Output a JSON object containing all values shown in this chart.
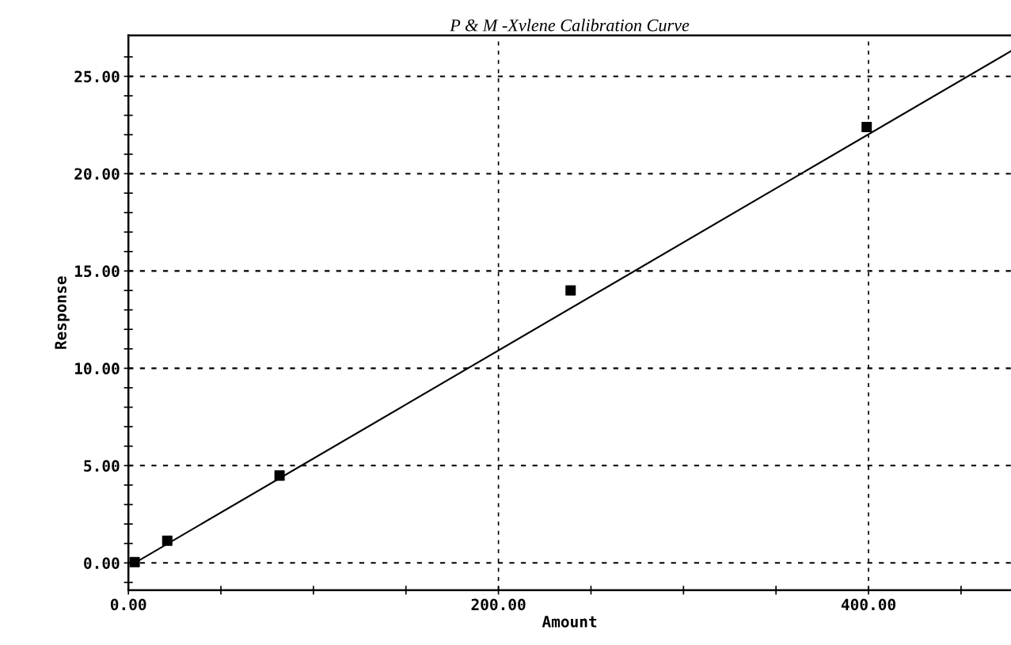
{
  "chart_data": {
    "type": "scatter",
    "title": "P & M -Xvlene Calibration Curve",
    "xlabel": "Amount",
    "ylabel": "Response",
    "series": [
      {
        "color": "#000000",
        "marker": "square",
        "x": [
          3.4,
          21,
          81.7,
          239,
          399
        ],
        "values": [
          0.04,
          1.14,
          4.49,
          14.0,
          22.4
        ]
      },
      {
        "type": "line",
        "color": "#000000",
        "marker": "none",
        "line_style": "solid",
        "x": [
          3.4,
          477
        ],
        "values": [
          0.0,
          26.3
        ]
      }
    ],
    "xlim": [
      0,
      477
    ],
    "ylim": [
      -1.4,
      27.1
    ],
    "xticks": [
      {
        "value": 0,
        "label": "0.00"
      },
      {
        "value": 50,
        "label": null
      },
      {
        "value": 100,
        "label": null
      },
      {
        "value": 150,
        "label": null
      },
      {
        "value": 200,
        "label": "200.00"
      },
      {
        "value": 250,
        "label": null
      },
      {
        "value": 300,
        "label": null
      },
      {
        "value": 350,
        "label": null
      },
      {
        "value": 400,
        "label": "400.00"
      },
      {
        "value": 450,
        "label": null
      }
    ],
    "yticks": [
      {
        "value": -1,
        "label": null
      },
      {
        "value": 0,
        "label": "0.00"
      },
      {
        "value": 1,
        "label": null
      },
      {
        "value": 2,
        "label": null
      },
      {
        "value": 3,
        "label": null
      },
      {
        "value": 4,
        "label": null
      },
      {
        "value": 5,
        "label": "5.00"
      },
      {
        "value": 6,
        "label": null
      },
      {
        "value": 7,
        "label": null
      },
      {
        "value": 8,
        "label": null
      },
      {
        "value": 9,
        "label": null
      },
      {
        "value": 10,
        "label": "10.00"
      },
      {
        "value": 11,
        "label": null
      },
      {
        "value": 12,
        "label": null
      },
      {
        "value": 13,
        "label": null
      },
      {
        "value": 14,
        "label": null
      },
      {
        "value": 15,
        "label": "15.00"
      },
      {
        "value": 16,
        "label": null
      },
      {
        "value": 17,
        "label": null
      },
      {
        "value": 18,
        "label": null
      },
      {
        "value": 19,
        "label": null
      },
      {
        "value": 20,
        "label": "20.00"
      },
      {
        "value": 21,
        "label": null
      },
      {
        "value": 22,
        "label": null
      },
      {
        "value": 23,
        "label": null
      },
      {
        "value": 24,
        "label": null
      },
      {
        "value": 25,
        "label": "25.00"
      },
      {
        "value": 26,
        "label": null
      }
    ],
    "grid": true,
    "legend": false
  }
}
